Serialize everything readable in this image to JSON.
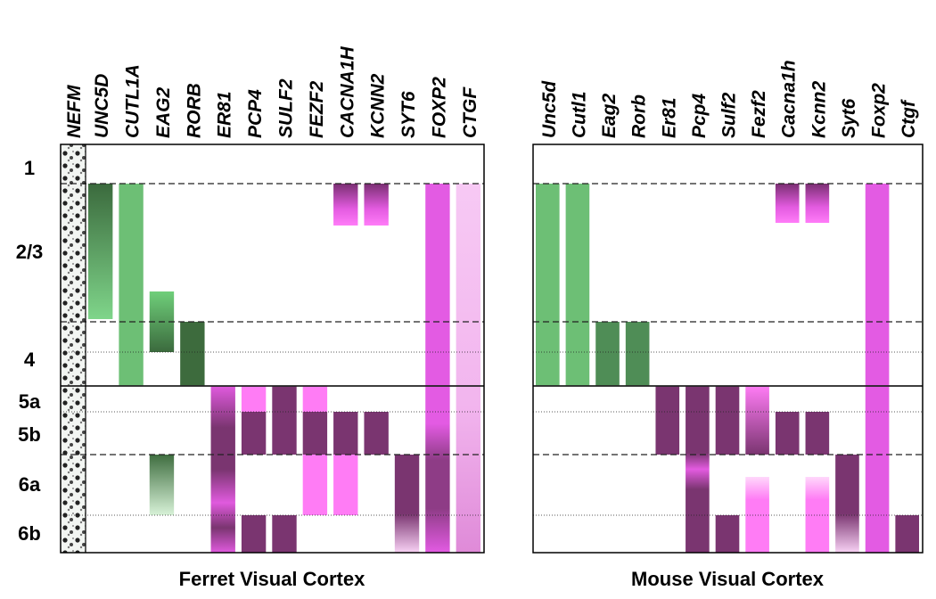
{
  "layers": [
    "1",
    "2/3",
    "4",
    "5a",
    "5b",
    "6a",
    "6b"
  ],
  "ferret": {
    "title": "Ferret Visual Cortex",
    "genes": [
      "NEFM",
      "UNC5D",
      "CUTL1A",
      "EAG2",
      "RORB",
      "ER81",
      "PCP4",
      "SULF2",
      "FEZF2",
      "CACNA1H",
      "KCNN2",
      "SYT6",
      "FOXP2",
      "CTGF"
    ]
  },
  "mouse": {
    "title": "Mouse Visual Cortex",
    "genes": [
      "Unc5d",
      "Cutl1",
      "Eag2",
      "Rorb",
      "Er81",
      "Pcp4",
      "Sulf2",
      "Fezf2",
      "Cacna1h",
      "Kcnn2",
      "Syt6",
      "Foxp2",
      "Ctgf"
    ]
  }
}
